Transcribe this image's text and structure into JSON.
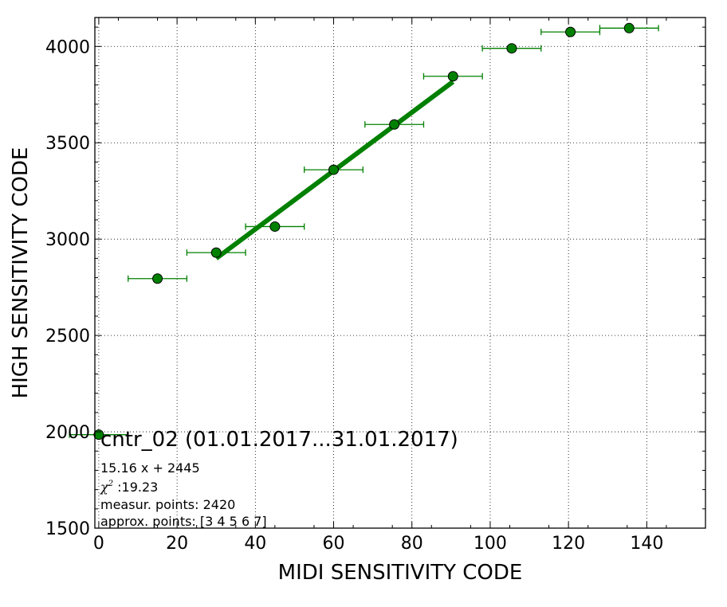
{
  "chart_data": {
    "type": "scatter",
    "title": "cntr_02 (01.01.2017...31.01.2017)",
    "xlabel": "MIDI SENSITIVITY CODE",
    "ylabel": "HIGH SENSITIVITY CODE",
    "xlim": [
      -1,
      155
    ],
    "ylim": [
      1500,
      4150
    ],
    "xticks": [
      0,
      20,
      40,
      60,
      80,
      100,
      120,
      140
    ],
    "yticks": [
      1500,
      2000,
      2500,
      3000,
      3500,
      4000
    ],
    "grid": true,
    "series": [
      {
        "kind": "points_with_x_error",
        "color": "#008000",
        "points": [
          {
            "x": 0,
            "y": 1985,
            "xerr": 7.5
          },
          {
            "x": 15,
            "y": 2795,
            "xerr": 7.5
          },
          {
            "x": 30,
            "y": 2930,
            "xerr": 7.5
          },
          {
            "x": 45,
            "y": 3065,
            "xerr": 7.5
          },
          {
            "x": 60,
            "y": 3360,
            "xerr": 7.5
          },
          {
            "x": 75.5,
            "y": 3595,
            "xerr": 7.5
          },
          {
            "x": 90.5,
            "y": 3845,
            "xerr": 7.5
          },
          {
            "x": 105.5,
            "y": 3990,
            "xerr": 7.5
          },
          {
            "x": 120.5,
            "y": 4075,
            "xerr": 7.5
          },
          {
            "x": 135.5,
            "y": 4095,
            "xerr": 7.5
          }
        ]
      },
      {
        "kind": "fit_line",
        "color": "#008000",
        "slope": 15.16,
        "intercept": 2445,
        "x_range": [
          30,
          90.5
        ]
      }
    ],
    "annotations": {
      "equation": "15.16 x + 2445",
      "chi_symbol": "χ",
      "chi_power": "2",
      "chi_value": " :19.23",
      "measured_points": "measur. points: 2420",
      "approx_points": "approx. points: [3 4 5 6 7]"
    }
  }
}
